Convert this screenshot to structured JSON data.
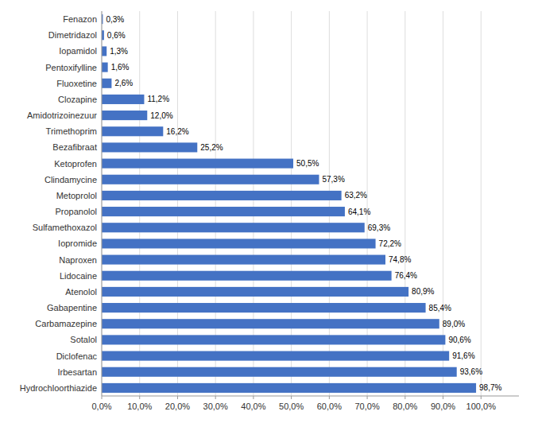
{
  "chart_data": {
    "type": "bar",
    "orientation": "horizontal",
    "categories": [
      "Hydrochloorthiazide",
      "Irbesartan",
      "Diclofenac",
      "Sotalol",
      "Carbamazepine",
      "Gabapentine",
      "Atenolol",
      "Lidocaine",
      "Naproxen",
      "Iopromide",
      "Sulfamethoxazol",
      "Propanolol",
      "Metoprolol",
      "Clindamycine",
      "Ketoprofen",
      "Bezafibraat",
      "Trimethoprim",
      "Amidotrizoinezuur",
      "Clozapine",
      "Fluoxetine",
      "Pentoxifylline",
      "Iopamidol",
      "Dimetridazol",
      "Fenazon"
    ],
    "values": [
      98.7,
      93.6,
      91.6,
      90.6,
      89.0,
      85.4,
      80.9,
      76.4,
      74.8,
      72.2,
      69.3,
      64.1,
      63.2,
      57.3,
      50.5,
      25.2,
      16.2,
      12.0,
      11.2,
      2.6,
      1.6,
      1.3,
      0.6,
      0.3
    ],
    "value_labels": [
      "98,7%",
      "93,6%",
      "91,6%",
      "90,6%",
      "89,0%",
      "85,4%",
      "80,9%",
      "76,4%",
      "74,8%",
      "72,2%",
      "69,3%",
      "64,1%",
      "63,2%",
      "57,3%",
      "50,5%",
      "25,2%",
      "16,2%",
      "12,0%",
      "11,2%",
      "2,6%",
      "1,6%",
      "1,3%",
      "0,6%",
      "0,3%"
    ],
    "data_labels": true,
    "color": "#4472C4",
    "xlim": [
      0,
      110
    ],
    "xticks": [
      {
        "value": 0,
        "label": "0,0%"
      },
      {
        "value": 10,
        "label": "10,0%"
      },
      {
        "value": 20,
        "label": "20,0%"
      },
      {
        "value": 30,
        "label": "30,0%"
      },
      {
        "value": 40,
        "label": "40,0%"
      },
      {
        "value": 50,
        "label": "50,0%"
      },
      {
        "value": 60,
        "label": "60,0%"
      },
      {
        "value": 70,
        "label": "70,0%"
      },
      {
        "value": 80,
        "label": "80,0%"
      },
      {
        "value": 90,
        "label": "90,0%"
      },
      {
        "value": 100,
        "label": "100,0%"
      }
    ],
    "grid": true
  }
}
